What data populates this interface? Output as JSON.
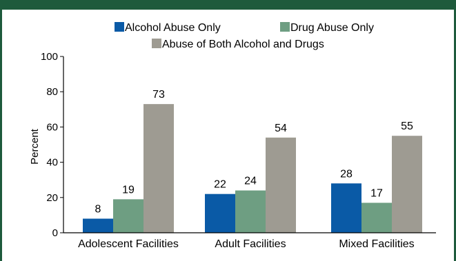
{
  "chart_data": {
    "type": "bar",
    "title": "",
    "xlabel": "",
    "ylabel": "Percent",
    "ylim": [
      0,
      100
    ],
    "yticks": [
      0,
      20,
      40,
      60,
      80,
      100
    ],
    "grid": false,
    "legend_position": "top",
    "categories": [
      "Adolescent Facilities",
      "Adult Facilities",
      "Mixed Facilities"
    ],
    "series": [
      {
        "name": "Alcohol Abuse Only",
        "values": [
          8,
          22,
          28
        ],
        "color": "#0a5aa6"
      },
      {
        "name": "Drug Abuse Only",
        "values": [
          19,
          24,
          17
        ],
        "color": "#6e9e82"
      },
      {
        "name": "Abuse of Both Alcohol and Drugs",
        "values": [
          73,
          54,
          55
        ],
        "color": "#9e9b92"
      }
    ],
    "data_labels": [
      [
        "8",
        "22",
        "28"
      ],
      [
        "19",
        "24",
        "17"
      ],
      [
        "73",
        "54",
        "55"
      ]
    ]
  },
  "colors": {
    "frame": "#1e5a3c",
    "axis": "#000000"
  }
}
